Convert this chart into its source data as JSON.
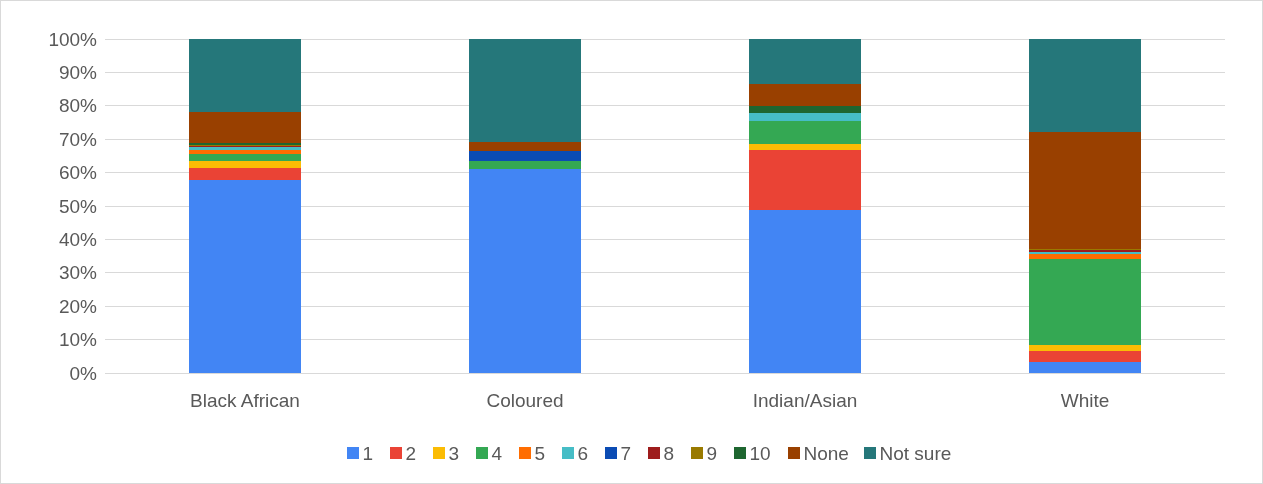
{
  "chart_data": {
    "type": "bar",
    "stacked": true,
    "categories": [
      "Black African",
      "Coloured",
      "Indian/Asian",
      "White"
    ],
    "ylim": [
      0,
      100
    ],
    "yticks": [
      {
        "value": 0,
        "label": "0%"
      },
      {
        "value": 10,
        "label": "10%"
      },
      {
        "value": 20,
        "label": "20%"
      },
      {
        "value": 30,
        "label": "30%"
      },
      {
        "value": 40,
        "label": "40%"
      },
      {
        "value": 50,
        "label": "50%"
      },
      {
        "value": 60,
        "label": "60%"
      },
      {
        "value": 70,
        "label": "70%"
      },
      {
        "value": 80,
        "label": "80%"
      },
      {
        "value": 90,
        "label": "90%"
      },
      {
        "value": 100,
        "label": "100%"
      }
    ],
    "grid": "y",
    "legend": "bottom",
    "series": [
      {
        "name": "1",
        "color": "#4285f4",
        "values": [
          57.8,
          61.1,
          48.8,
          3.3
        ]
      },
      {
        "name": "2",
        "color": "#ea4335",
        "values": [
          3.5,
          0,
          17.9,
          3.4
        ]
      },
      {
        "name": "3",
        "color": "#fbbc04",
        "values": [
          2.1,
          0,
          2.0,
          1.8
        ]
      },
      {
        "name": "4",
        "color": "#34a853",
        "values": [
          2.2,
          2.5,
          6.7,
          25.7
        ]
      },
      {
        "name": "5",
        "color": "#ff6d01",
        "values": [
          1.3,
          0,
          0,
          1.3
        ]
      },
      {
        "name": "6",
        "color": "#46bdc6",
        "values": [
          0.8,
          0,
          2.3,
          0.8
        ]
      },
      {
        "name": "7",
        "color": "#0b4cb4",
        "values": [
          0,
          3.0,
          0,
          0
        ]
      },
      {
        "name": "8",
        "color": "#9e1c1c",
        "values": [
          0.2,
          0,
          0,
          0.4
        ]
      },
      {
        "name": "9",
        "color": "#997a00",
        "values": [
          0.4,
          0,
          0,
          0.3
        ]
      },
      {
        "name": "10",
        "color": "#1e6630",
        "values": [
          0.5,
          0,
          2.2,
          0
        ]
      },
      {
        "name": "None",
        "color": "#994000",
        "values": [
          9.4,
          2.7,
          6.7,
          35.1
        ]
      },
      {
        "name": "Not sure",
        "color": "#25777a",
        "values": [
          21.8,
          30.7,
          13.4,
          27.8
        ]
      }
    ]
  }
}
